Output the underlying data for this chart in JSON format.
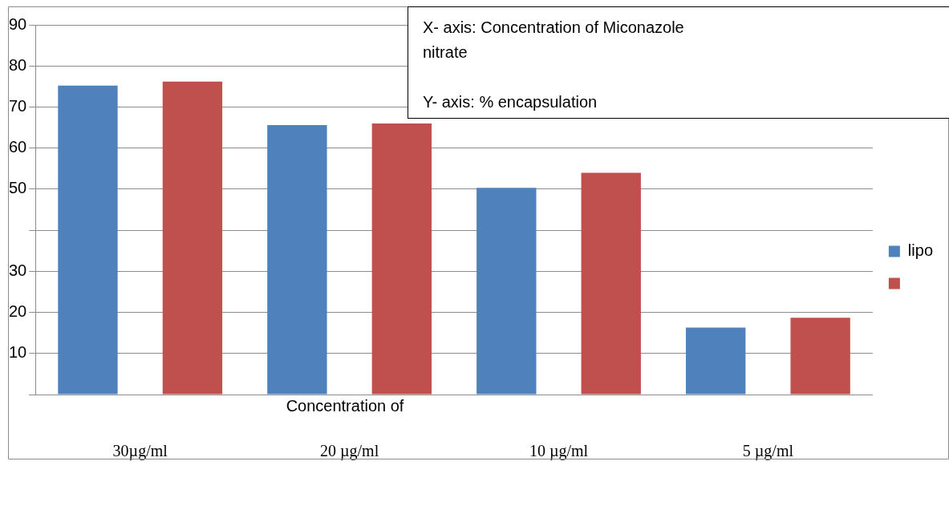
{
  "chart_data": {
    "type": "bar",
    "xlabel": "Concentration of",
    "annotations": [
      "X- axis: Concentration of Miconazole\nnitrate\n\nY- axis: % encapsulation"
    ],
    "categories": [
      "30µg/ml",
      "20 µg/ml",
      "10 µg/ml",
      "5 µg/ml"
    ],
    "series": [
      {
        "name": "lipo",
        "color": "#4f81bd",
        "values": [
          75.2,
          65.6,
          50.3,
          16.3
        ]
      },
      {
        "color": "#c0504d",
        "values": [
          76.2,
          66.0,
          54.0,
          18.7
        ]
      }
    ],
    "ylim": [
      0,
      90
    ],
    "yticks": [
      {
        "value": 0,
        "label": null
      },
      10,
      20,
      30,
      {
        "value": 40,
        "label": null
      },
      50,
      60,
      70,
      80,
      90
    ],
    "grid": "y",
    "legend": "right"
  }
}
